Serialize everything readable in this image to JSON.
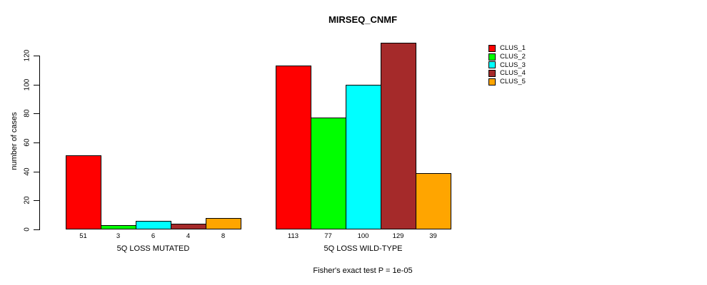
{
  "title": "MIRSEQ_CNMF",
  "footer": "Fisher's exact test P = 1e-05",
  "y_axis": {
    "label": "number of cases",
    "ticks": [
      0,
      20,
      40,
      60,
      80,
      100,
      120
    ]
  },
  "legend": {
    "entries": [
      {
        "label": "CLUS_1",
        "color": "#ff0000"
      },
      {
        "label": "CLUS_2",
        "color": "#00ff00"
      },
      {
        "label": "CLUS_3",
        "color": "#00ffff"
      },
      {
        "label": "CLUS_4",
        "color": "#a52a2a"
      },
      {
        "label": "CLUS_5",
        "color": "#ffa500"
      }
    ]
  },
  "chart_data": {
    "type": "bar",
    "title": "MIRSEQ_CNMF",
    "xlabel": "",
    "ylabel": "number of cases",
    "ylim": [
      0,
      120
    ],
    "yticks": [
      0,
      20,
      40,
      60,
      80,
      100,
      120
    ],
    "grid": false,
    "legend_position": "top-right-outside",
    "show_bar_value_labels": true,
    "categories": [
      "5Q LOSS MUTATED",
      "5Q LOSS WILD-TYPE"
    ],
    "series": [
      {
        "name": "CLUS_1",
        "color": "#ff0000",
        "values": [
          51,
          113
        ]
      },
      {
        "name": "CLUS_2",
        "color": "#00ff00",
        "values": [
          3,
          77
        ]
      },
      {
        "name": "CLUS_3",
        "color": "#00ffff",
        "values": [
          6,
          100
        ]
      },
      {
        "name": "CLUS_4",
        "color": "#a52a2a",
        "values": [
          4,
          129
        ]
      },
      {
        "name": "CLUS_5",
        "color": "#ffa500",
        "values": [
          8,
          39
        ]
      }
    ],
    "annotation": "Fisher's exact test P = 1e-05"
  }
}
